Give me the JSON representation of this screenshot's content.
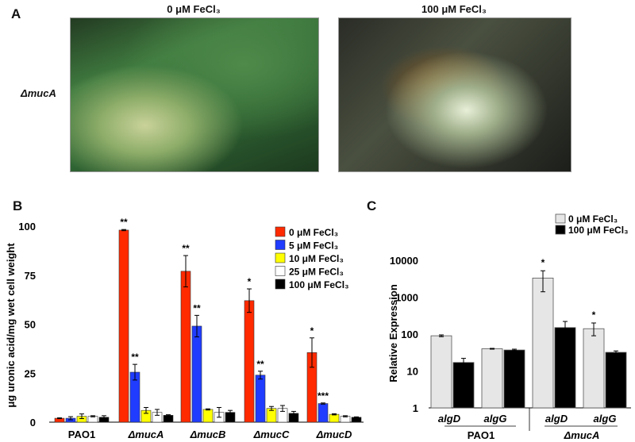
{
  "panel_a": {
    "label": "A",
    "titles": [
      "0 μM FeCl₃",
      "100 μM FeCl₃"
    ],
    "row_label": "ΔmucA"
  },
  "chart_data": [
    {
      "panel": "B",
      "type": "bar",
      "ylabel": "μg uronic acid/mg wet cell weight",
      "ylim": [
        0,
        100
      ],
      "yticks": [
        "0",
        "25",
        "50",
        "75",
        "100"
      ],
      "categories": [
        "PAO1",
        "ΔmucA",
        "ΔmucB",
        "ΔmucC",
        "ΔmucD"
      ],
      "legend_position": "top-right",
      "series": [
        {
          "name": "0 μM FeCl₃",
          "color": "#ff2a00",
          "values": [
            2,
            98,
            77,
            62,
            35.5
          ],
          "errors": [
            0.2,
            0.3,
            8,
            6,
            7.5
          ],
          "significance": [
            "",
            "**",
            "**",
            "*",
            "*"
          ]
        },
        {
          "name": "5 μM FeCl₃",
          "color": "#1f3cff",
          "values": [
            2,
            25.5,
            49,
            24,
            9.5
          ],
          "errors": [
            0.8,
            4,
            5.5,
            2,
            0.3
          ],
          "significance": [
            "",
            "**",
            "**",
            "**",
            "***"
          ]
        },
        {
          "name": "10 μM FeCl₃",
          "color": "#ffff00",
          "values": [
            3,
            6,
            6.5,
            7,
            4
          ],
          "errors": [
            1.2,
            1.5,
            0.3,
            1,
            0.3
          ],
          "significance": [
            "",
            "",
            "",
            "",
            ""
          ]
        },
        {
          "name": "25 μM FeCl₃",
          "color": "#ffffff",
          "values": [
            3,
            5,
            5,
            7,
            3
          ],
          "errors": [
            0.3,
            1.5,
            2.5,
            1.5,
            0.3
          ],
          "significance": [
            "",
            "",
            "",
            "",
            ""
          ]
        },
        {
          "name": "100 μM FeCl₃",
          "color": "#000000",
          "values": [
            2.5,
            3.5,
            5,
            4.5,
            2.5
          ],
          "errors": [
            0.8,
            0.3,
            1,
            1,
            0.2
          ],
          "significance": [
            "",
            "",
            "",
            "",
            ""
          ]
        }
      ]
    },
    {
      "panel": "C",
      "type": "bar",
      "yscale": "log",
      "ylabel": "Relative Expression",
      "ylim": [
        1,
        10000
      ],
      "yticks": [
        "1",
        "10",
        "100",
        "1000",
        "10000"
      ],
      "categories": [
        "algD",
        "algG",
        "algD",
        "algG"
      ],
      "groups": [
        "PAO1",
        "ΔmucA"
      ],
      "legend_position": "top-right",
      "series": [
        {
          "name": "0 μM FeCl₃",
          "color": "#e6e6e6",
          "values": [
            90,
            40,
            3300,
            140
          ],
          "errors_low": [
            85,
            39,
            1400,
            90
          ],
          "errors_high": [
            95,
            41,
            5200,
            200
          ],
          "significance": [
            "",
            "",
            "*",
            "*"
          ]
        },
        {
          "name": "100 μM FeCl₃",
          "color": "#000000",
          "values": [
            17,
            37,
            150,
            32
          ],
          "errors_low": [
            15,
            36,
            130,
            30
          ],
          "errors_high": [
            22,
            39,
            220,
            35
          ],
          "significance": [
            "",
            "",
            "",
            ""
          ]
        }
      ]
    }
  ]
}
